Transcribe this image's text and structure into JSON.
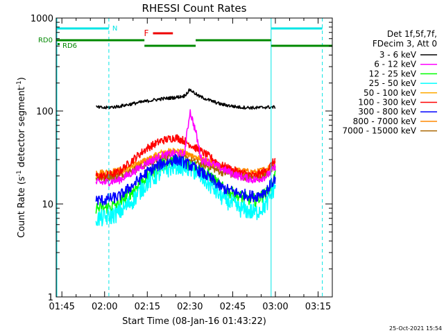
{
  "chart_data": {
    "type": "line",
    "title": "RHESSI Count Rates",
    "xlabel": "Start Time (08-Jan-16 01:43:22)",
    "ylabel_main": "Count Rate (s",
    "ylabel_sup1": "-1",
    "ylabel_mid": " detector segment",
    "ylabel_sup2": "-1",
    "ylabel_end": ")",
    "yscale": "log",
    "ylim": [
      1,
      1000
    ],
    "xlim_minutes": [
      -2,
      95
    ],
    "x_ticks": [
      "01:45",
      "02:00",
      "02:15",
      "02:30",
      "02:45",
      "03:00",
      "03:15"
    ],
    "x_tick_minutes": [
      0,
      15,
      30,
      45,
      60,
      75,
      90
    ],
    "y_ticks": [
      "1",
      "10",
      "100",
      "1000"
    ],
    "y_tick_values": [
      1,
      10,
      100,
      1000
    ],
    "grid": false,
    "legend_position": "right",
    "legend_header": [
      "Det 1f,5f,7f,",
      "FDecim 3, Att 0"
    ],
    "series": [
      {
        "name": "3 - 6 keV",
        "color": "#000000",
        "points": [
          [
            12,
            110
          ],
          [
            15,
            108
          ],
          [
            20,
            112
          ],
          [
            25,
            120
          ],
          [
            30,
            128
          ],
          [
            35,
            135
          ],
          [
            40,
            140
          ],
          [
            43,
            145
          ],
          [
            45,
            170
          ],
          [
            48,
            145
          ],
          [
            52,
            130
          ],
          [
            56,
            118
          ],
          [
            62,
            110
          ],
          [
            68,
            108
          ],
          [
            72,
            110
          ],
          [
            75,
            110
          ]
        ]
      },
      {
        "name": "6 - 12 keV",
        "color": "#ff00ff",
        "points": [
          [
            12,
            17
          ],
          [
            15,
            17
          ],
          [
            20,
            18
          ],
          [
            25,
            22
          ],
          [
            30,
            28
          ],
          [
            35,
            33
          ],
          [
            40,
            35
          ],
          [
            43,
            34
          ],
          [
            45,
            100
          ],
          [
            47,
            60
          ],
          [
            49,
            30
          ],
          [
            52,
            28
          ],
          [
            56,
            24
          ],
          [
            62,
            20
          ],
          [
            68,
            18
          ],
          [
            72,
            20
          ],
          [
            75,
            25
          ]
        ]
      },
      {
        "name": "12 - 25 keV",
        "color": "#00ff00",
        "points": [
          [
            12,
            9
          ],
          [
            15,
            9
          ],
          [
            20,
            10
          ],
          [
            25,
            14
          ],
          [
            30,
            20
          ],
          [
            35,
            26
          ],
          [
            40,
            29
          ],
          [
            43,
            28
          ],
          [
            47,
            25
          ],
          [
            52,
            20
          ],
          [
            56,
            15
          ],
          [
            62,
            12
          ],
          [
            68,
            11
          ],
          [
            72,
            13
          ],
          [
            75,
            20
          ]
        ]
      },
      {
        "name": "25 - 50 keV",
        "color": "#00ffff",
        "points": [
          [
            12,
            7
          ],
          [
            15,
            7
          ],
          [
            20,
            8
          ],
          [
            25,
            11
          ],
          [
            30,
            17
          ],
          [
            35,
            22
          ],
          [
            40,
            26
          ],
          [
            43,
            25
          ],
          [
            47,
            22
          ],
          [
            52,
            16
          ],
          [
            56,
            12
          ],
          [
            62,
            9
          ],
          [
            68,
            8
          ],
          [
            72,
            10
          ],
          [
            75,
            16
          ]
        ]
      },
      {
        "name": "50 - 100 keV",
        "color": "#ffaa00",
        "points": [
          [
            12,
            20
          ],
          [
            15,
            20
          ],
          [
            20,
            21
          ],
          [
            25,
            25
          ],
          [
            30,
            30
          ],
          [
            35,
            36
          ],
          [
            40,
            38
          ],
          [
            43,
            36
          ],
          [
            47,
            32
          ],
          [
            52,
            28
          ],
          [
            56,
            24
          ],
          [
            62,
            21
          ],
          [
            68,
            20
          ],
          [
            72,
            22
          ],
          [
            75,
            25
          ]
        ]
      },
      {
        "name": "100 - 300 keV",
        "color": "#ff0000",
        "points": [
          [
            12,
            20
          ],
          [
            15,
            20
          ],
          [
            20,
            22
          ],
          [
            25,
            30
          ],
          [
            30,
            40
          ],
          [
            35,
            48
          ],
          [
            40,
            52
          ],
          [
            43,
            48
          ],
          [
            47,
            40
          ],
          [
            52,
            32
          ],
          [
            56,
            26
          ],
          [
            62,
            22
          ],
          [
            68,
            20
          ],
          [
            72,
            23
          ],
          [
            75,
            30
          ]
        ]
      },
      {
        "name": "300 - 800 keV",
        "color": "#0000ff",
        "points": [
          [
            12,
            11
          ],
          [
            15,
            11
          ],
          [
            20,
            12
          ],
          [
            25,
            16
          ],
          [
            30,
            22
          ],
          [
            35,
            27
          ],
          [
            40,
            30
          ],
          [
            43,
            28
          ],
          [
            47,
            24
          ],
          [
            52,
            19
          ],
          [
            56,
            15
          ],
          [
            62,
            13
          ],
          [
            68,
            12
          ],
          [
            72,
            14
          ],
          [
            75,
            19
          ]
        ]
      },
      {
        "name": "800 - 7000 keV",
        "color": "#ff8800",
        "points": [
          [
            12,
            22
          ],
          [
            15,
            22
          ],
          [
            20,
            23
          ],
          [
            25,
            26
          ],
          [
            30,
            30
          ],
          [
            35,
            34
          ],
          [
            40,
            37
          ],
          [
            43,
            35
          ],
          [
            47,
            31
          ],
          [
            52,
            28
          ],
          [
            56,
            25
          ],
          [
            62,
            23
          ],
          [
            68,
            22
          ],
          [
            72,
            24
          ],
          [
            75,
            28
          ]
        ]
      },
      {
        "name": "7000 - 15000 keV",
        "color": "#aa6600",
        "points": [
          [
            12,
            19
          ],
          [
            15,
            19
          ],
          [
            20,
            20
          ],
          [
            25,
            23
          ],
          [
            30,
            27
          ],
          [
            35,
            31
          ],
          [
            40,
            33
          ],
          [
            43,
            31
          ],
          [
            47,
            28
          ],
          [
            52,
            25
          ],
          [
            56,
            22
          ],
          [
            62,
            20
          ],
          [
            68,
            19
          ],
          [
            72,
            21
          ],
          [
            75,
            25
          ]
        ]
      }
    ],
    "annotations": {
      "n_label": "N",
      "f_label": "F",
      "rd0_label": "RD0",
      "rd6_label": "RD6"
    },
    "footer_date": "25-Oct-2021 15:54"
  }
}
